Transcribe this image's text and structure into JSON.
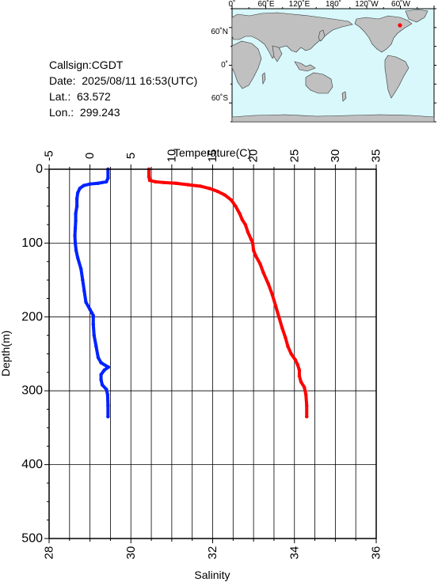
{
  "info": {
    "callsign": "Callsign:CGDT",
    "date": "Date:  2025/08/11 16:53(UTC)",
    "lat": "Lat.:  63.572",
    "lon": "Lon.:  299.243"
  },
  "map": {
    "top_ticks": [
      "0˚",
      "60˚E",
      "120˚E",
      "180˚",
      "120˚W",
      "60˚W"
    ],
    "left_ticks": [
      "60˚N",
      "0˚",
      "60˚S"
    ],
    "station_lat": 63.572,
    "station_lon": 299.243,
    "ocean_color": "#d8f8fc",
    "land_color": "#c0c0c0",
    "marker_color": "#ff0000"
  },
  "chart_data": {
    "type": "line",
    "title": "",
    "ylabel": "Depth(m)",
    "ylim": [
      0,
      500
    ],
    "y_ticks": [
      0,
      100,
      200,
      300,
      400,
      500
    ],
    "y_reversed": true,
    "grid": true,
    "top_axis": {
      "label": "Temperature(C)",
      "lim": [
        -5,
        35
      ],
      "ticks": [
        -5,
        0,
        5,
        10,
        15,
        20,
        25,
        30,
        35
      ]
    },
    "bottom_axis": {
      "label": "Salinity",
      "lim": [
        28,
        36
      ],
      "ticks": [
        28,
        30,
        32,
        34,
        36
      ]
    },
    "series": [
      {
        "axis": "top",
        "color": "#ff0000",
        "points": [
          [
            7.2,
            0
          ],
          [
            7.2,
            10
          ],
          [
            7.3,
            15
          ],
          [
            8.0,
            17
          ],
          [
            9.0,
            18
          ],
          [
            10.5,
            19
          ],
          [
            12.0,
            21
          ],
          [
            13.5,
            23
          ],
          [
            14.6,
            26
          ],
          [
            15.6,
            30
          ],
          [
            16.5,
            35
          ],
          [
            17.3,
            42
          ],
          [
            17.8,
            50
          ],
          [
            18.3,
            60
          ],
          [
            18.6,
            68
          ],
          [
            19.0,
            75
          ],
          [
            19.3,
            85
          ],
          [
            19.7,
            95
          ],
          [
            19.9,
            100
          ],
          [
            20.0,
            110
          ],
          [
            20.3,
            118
          ],
          [
            20.8,
            128
          ],
          [
            21.2,
            140
          ],
          [
            21.8,
            155
          ],
          [
            22.3,
            170
          ],
          [
            22.7,
            185
          ],
          [
            23.1,
            200
          ],
          [
            23.5,
            215
          ],
          [
            23.9,
            228
          ],
          [
            24.2,
            240
          ],
          [
            24.6,
            250
          ],
          [
            25.1,
            258
          ],
          [
            25.4,
            265
          ],
          [
            25.6,
            272
          ],
          [
            25.6,
            280
          ],
          [
            25.8,
            288
          ],
          [
            26.2,
            295
          ],
          [
            26.4,
            305
          ],
          [
            26.5,
            320
          ],
          [
            26.5,
            335
          ]
        ]
      },
      {
        "axis": "bottom",
        "color": "#0022ff",
        "points": [
          [
            29.44,
            0
          ],
          [
            29.44,
            12
          ],
          [
            29.4,
            17
          ],
          [
            29.2,
            19
          ],
          [
            29.0,
            20
          ],
          [
            28.85,
            22
          ],
          [
            28.75,
            26
          ],
          [
            28.7,
            32
          ],
          [
            28.68,
            40
          ],
          [
            28.68,
            50
          ],
          [
            28.65,
            60
          ],
          [
            28.65,
            70
          ],
          [
            28.64,
            80
          ],
          [
            28.63,
            90
          ],
          [
            28.64,
            100
          ],
          [
            28.66,
            110
          ],
          [
            28.7,
            120
          ],
          [
            28.78,
            135
          ],
          [
            28.82,
            150
          ],
          [
            28.86,
            165
          ],
          [
            28.9,
            180
          ],
          [
            29.0,
            190
          ],
          [
            29.05,
            195
          ],
          [
            29.08,
            198
          ],
          [
            29.08,
            210
          ],
          [
            29.1,
            225
          ],
          [
            29.15,
            240
          ],
          [
            29.2,
            255
          ],
          [
            29.27,
            262
          ],
          [
            29.45,
            268
          ],
          [
            29.35,
            272
          ],
          [
            29.27,
            278
          ],
          [
            29.27,
            285
          ],
          [
            29.3,
            292
          ],
          [
            29.4,
            298
          ],
          [
            29.43,
            305
          ],
          [
            29.44,
            320
          ],
          [
            29.44,
            335
          ]
        ]
      }
    ]
  }
}
